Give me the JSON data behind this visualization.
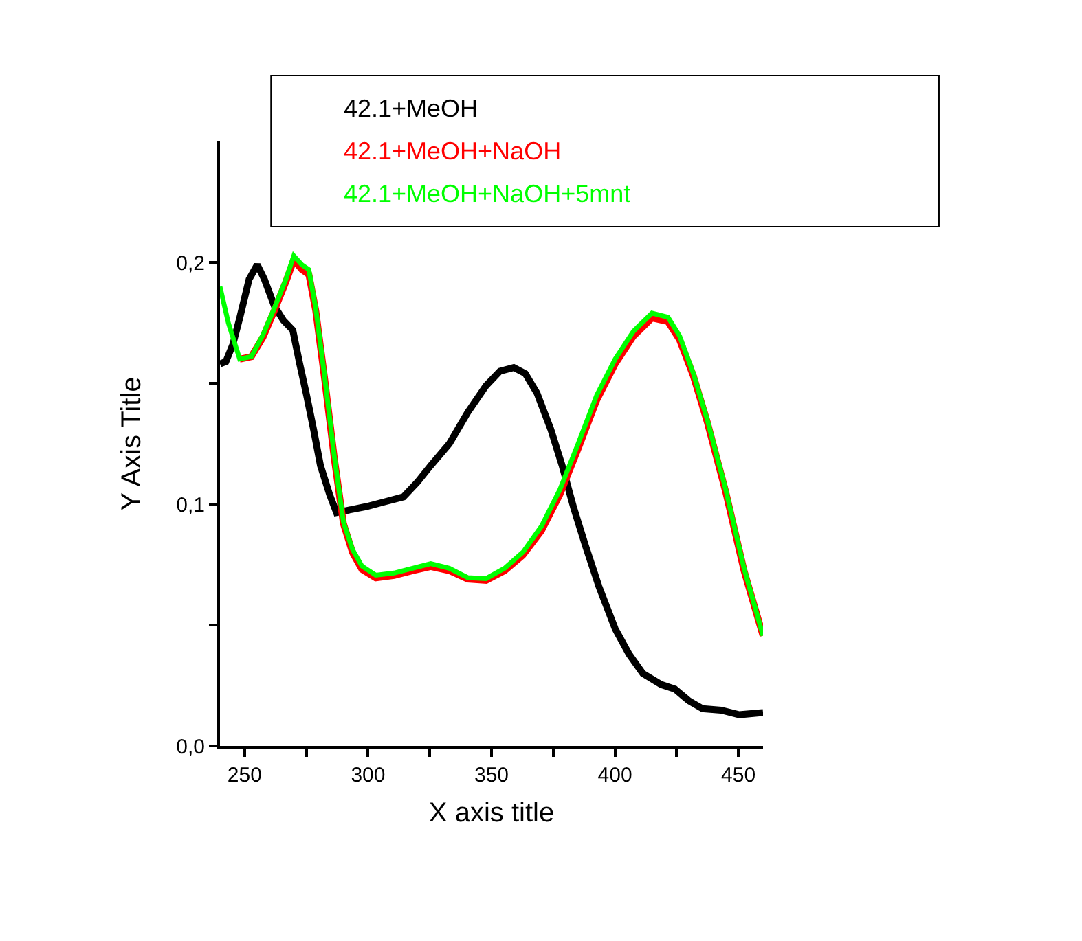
{
  "chart_data": {
    "type": "line",
    "xlabel": "X axis title",
    "ylabel": "Y Axis Title",
    "xlim": [
      240,
      460
    ],
    "ylim": [
      0,
      0.25
    ],
    "xticks": [
      250,
      {
        "value": 275,
        "label": null
      },
      300,
      {
        "value": 325,
        "label": null
      },
      350,
      {
        "value": 375,
        "label": null
      },
      400,
      {
        "value": 425,
        "label": null
      },
      450
    ],
    "yticks": [
      {
        "value": 0,
        "label": "0,0"
      },
      {
        "value": 0.05,
        "label": null
      },
      {
        "value": 0.1,
        "label": "0,1"
      },
      {
        "value": 0.15,
        "label": null
      },
      {
        "value": 0.2,
        "label": "0,2"
      }
    ],
    "legend": "top",
    "marker": "none",
    "line_style": "solid",
    "series": [
      {
        "name": "42.1+MeOH",
        "color": "#000000",
        "x": [
          240,
          242.4,
          245.2,
          248,
          251.8,
          255.1,
          258,
          262,
          265.7,
          269.5,
          272.3,
          275.1,
          277.9,
          280.7,
          284.4,
          287.2,
          291.9,
          299.3,
          306.8,
          314.3,
          319.9,
          325.4,
          332.9,
          340.4,
          347.8,
          353.4,
          359,
          363.7,
          368.4,
          374,
          378.6,
          383.3,
          388,
          393.5,
          400.1,
          405.7,
          411.3,
          418.7,
          424.3,
          429.9,
          435.5,
          443,
          450.4,
          460
        ],
        "values": [
          0.158,
          0.159,
          0.166,
          0.177,
          0.193,
          0.199,
          0.193,
          0.182,
          0.176,
          0.172,
          0.158,
          0.145,
          0.131,
          0.116,
          0.104,
          0.0965,
          0.0975,
          0.099,
          0.101,
          0.103,
          0.109,
          0.116,
          0.125,
          0.138,
          0.149,
          0.155,
          0.1565,
          0.154,
          0.146,
          0.131,
          0.116,
          0.0985,
          0.083,
          0.066,
          0.0485,
          0.038,
          0.03,
          0.0254,
          0.0235,
          0.0187,
          0.0154,
          0.0148,
          0.0129,
          0.0138
        ]
      },
      {
        "name": "42.1+MeOH+NaOH",
        "color": "#ff0000",
        "x": [
          248,
          252.7,
          257.4,
          262,
          266.7,
          269.9,
          273.2,
          276,
          278.8,
          282.5,
          286.3,
          290,
          293.7,
          297.5,
          303.1,
          310.5,
          318,
          325.4,
          332.9,
          340.4,
          347.8,
          355.3,
          362.8,
          370.2,
          377.7,
          385.1,
          392.6,
          400.1,
          407.5,
          415,
          421.5,
          426.2,
          431.8,
          437.4,
          444.9,
          452.3,
          460
        ],
        "values": [
          0.16,
          0.161,
          0.169,
          0.18,
          0.192,
          0.201,
          0.197,
          0.195,
          0.18,
          0.151,
          0.119,
          0.092,
          0.08,
          0.073,
          0.0695,
          0.0705,
          0.0725,
          0.0742,
          0.0725,
          0.069,
          0.0685,
          0.0725,
          0.079,
          0.089,
          0.104,
          0.123,
          0.143,
          0.158,
          0.1695,
          0.177,
          0.1755,
          0.168,
          0.153,
          0.134,
          0.105,
          0.0725,
          0.0456
        ]
      },
      {
        "name": "42.1+MeOH+NaOH+5mnt",
        "color": "#00ff00",
        "x": [
          240,
          243.4,
          248,
          252.7,
          257.4,
          262,
          266.7,
          269.9,
          273.2,
          276,
          278.8,
          282.5,
          286.3,
          290,
          293.7,
          297.5,
          303.1,
          310.5,
          318,
          325.4,
          332.9,
          340.4,
          347.8,
          355.3,
          362.8,
          370.2,
          377.7,
          385.1,
          392.6,
          400.1,
          407.5,
          415,
          421.5,
          426.2,
          431.8,
          437.4,
          444.9,
          452.3,
          460
        ],
        "values": [
          0.19,
          0.175,
          0.16,
          0.161,
          0.17,
          0.181,
          0.193,
          0.2027,
          0.199,
          0.197,
          0.181,
          0.152,
          0.12,
          0.0927,
          0.0812,
          0.0744,
          0.0706,
          0.0715,
          0.0735,
          0.0754,
          0.0735,
          0.0696,
          0.0692,
          0.0735,
          0.0802,
          0.0908,
          0.106,
          0.125,
          0.145,
          0.16,
          0.1715,
          0.179,
          0.1773,
          0.1696,
          0.154,
          0.135,
          0.106,
          0.0735,
          0.0456
        ]
      }
    ]
  }
}
